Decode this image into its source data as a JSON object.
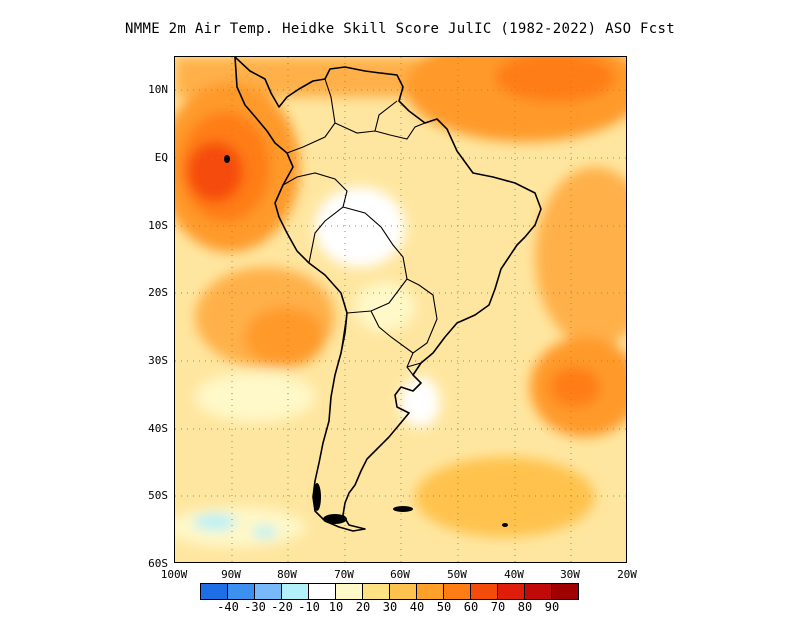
{
  "title": "NMME  2m Air Temp. Heidke Skill Score JulIC (1982-2022) ASO Fcst",
  "map": {
    "lat_labels": [
      "10N",
      "EQ",
      "10S",
      "20S",
      "30S",
      "40S",
      "50S",
      "60S"
    ],
    "lon_labels": [
      "100W",
      "90W",
      "80W",
      "70W",
      "60W",
      "50W",
      "40W",
      "30W",
      "20W"
    ],
    "lat_values": [
      10,
      0,
      -10,
      -20,
      -30,
      -40,
      -50,
      -60
    ],
    "lon_values": [
      -100,
      -90,
      -80,
      -70,
      -60,
      -50,
      -40,
      -30,
      -20
    ],
    "extent": {
      "lon_min": -100,
      "lon_max": -20,
      "lat_min": -60,
      "lat_max": 15
    },
    "grid": "dotted"
  },
  "colorbar": {
    "colors": [
      "#1e6ee6",
      "#3c91f0",
      "#78b9fa",
      "#b4f0fa",
      "#ffffff",
      "#fff8c8",
      "#ffe282",
      "#ffc24e",
      "#ffa028",
      "#ff7d14",
      "#f54b0a",
      "#de1e0a",
      "#c00a0a",
      "#a00000"
    ],
    "labels": [
      "-40",
      "-30",
      "-20",
      "-10",
      "10",
      "20",
      "30",
      "40",
      "50",
      "60",
      "70",
      "80",
      "90"
    ]
  },
  "icons": {
    "coastline": "continent-outline"
  }
}
